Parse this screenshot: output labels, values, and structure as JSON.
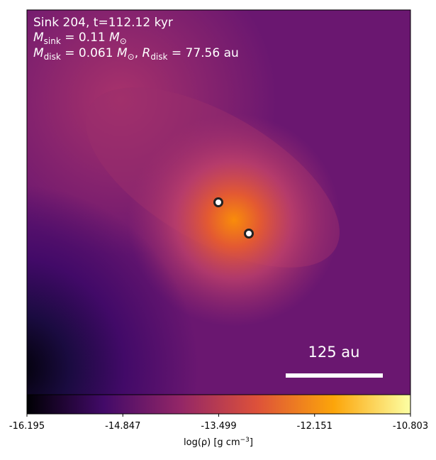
{
  "chart_data": {
    "type": "image",
    "annotations": {
      "line1": [
        "Sink 204, t=112.12 kyr"
      ],
      "line2": [
        "M",
        "sink",
        " = 0.11 ",
        "M",
        "⊙"
      ],
      "line3": [
        "M",
        "disk",
        " = 0.061 ",
        "M",
        "⊙",
        ", ",
        "R",
        "disk",
        " = 77.56 au"
      ],
      "scale_bar": "125 au"
    },
    "colorbar": {
      "xlim": [
        -16.195,
        -10.803
      ],
      "xticks": [
        -16.195,
        -14.847,
        -13.499,
        -12.151,
        -10.803
      ],
      "label": [
        "log(ρ) [g cm",
        "−3",
        "]"
      ]
    }
  }
}
